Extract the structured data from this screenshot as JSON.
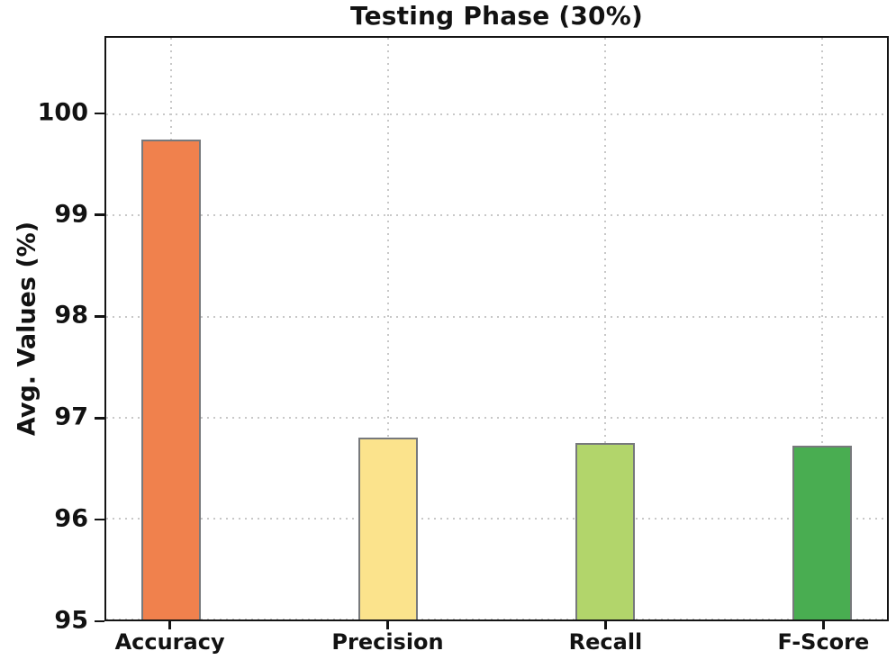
{
  "chart_data": {
    "type": "bar",
    "title": "Testing Phase (30%)",
    "xlabel": "",
    "ylabel": "Avg. Values (%)",
    "categories": [
      "Accuracy",
      "Precision",
      "Recall",
      "F-Score"
    ],
    "values": [
      99.75,
      96.8,
      96.75,
      96.72
    ],
    "bar_colors": [
      "#F0814D",
      "#FBE38C",
      "#B2D56B",
      "#49AD51"
    ],
    "bar_edge_color": "#77797c",
    "bar_width": 0.273,
    "ylim": [
      95,
      100.76
    ],
    "yticks": [
      95,
      96,
      97,
      98,
      99,
      100
    ],
    "xlim": [
      -0.3,
      3.3
    ],
    "grid": true,
    "grid_style": "dotted",
    "grid_color": "#c8c8c8",
    "spine_color": "#141414",
    "legend": "none"
  }
}
